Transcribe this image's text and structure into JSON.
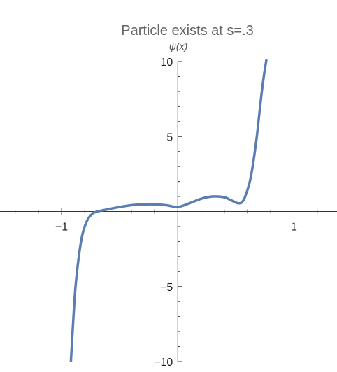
{
  "chart_data": {
    "type": "line",
    "title": "Particle exists at s=.3",
    "xlabel": "",
    "ylabel": "ψ(x)",
    "xlim": [
      -1.53,
      1.37
    ],
    "ylim": [
      -10,
      10
    ],
    "x_ticks": [
      -1,
      1
    ],
    "x_tick_labels": [
      "−1",
      "1"
    ],
    "y_ticks": [
      -10,
      -5,
      5,
      10
    ],
    "y_tick_labels": [
      "−10",
      "−5",
      "5",
      "10"
    ],
    "grid": false,
    "legend": "none",
    "series": [
      {
        "color": "#5b7db2",
        "x": [
          -0.92,
          -0.9,
          -0.88,
          -0.85,
          -0.82,
          -0.78,
          -0.74,
          -0.7,
          -0.6,
          -0.5,
          -0.4,
          -0.3,
          -0.2,
          -0.1,
          0.0,
          0.1,
          0.2,
          0.3,
          0.4,
          0.45,
          0.5,
          0.52,
          0.55,
          0.58,
          0.62,
          0.65,
          0.68,
          0.7,
          0.72,
          0.74,
          0.76,
          0.76
        ],
        "y": [
          -10.0,
          -7.3,
          -5.0,
          -2.9,
          -1.5,
          -0.6,
          -0.18,
          -0.02,
          0.15,
          0.3,
          0.42,
          0.47,
          0.48,
          0.42,
          0.3,
          0.55,
          0.85,
          1.0,
          0.95,
          0.78,
          0.6,
          0.55,
          0.6,
          1.0,
          2.0,
          3.3,
          5.0,
          6.4,
          7.8,
          9.0,
          10.0,
          10.0
        ]
      }
    ]
  }
}
